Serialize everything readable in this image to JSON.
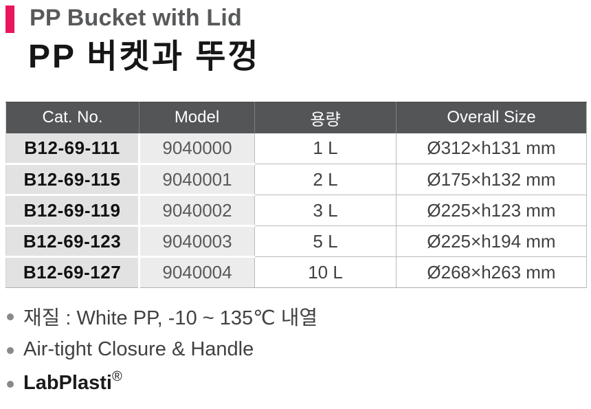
{
  "header": {
    "title_en": "PP Bucket with Lid",
    "title_ko": "PP 버켓과 뚜껑"
  },
  "table": {
    "headers": [
      "Cat. No.",
      "Model",
      "용량",
      "Overall Size"
    ],
    "rows": [
      {
        "cat_no": "B12-69-111",
        "model": "9040000",
        "capacity": "1 L",
        "overall_size": "Ø312×h131 mm"
      },
      {
        "cat_no": "B12-69-115",
        "model": "9040001",
        "capacity": "2 L",
        "overall_size": "Ø175×h132 mm"
      },
      {
        "cat_no": "B12-69-119",
        "model": "9040002",
        "capacity": "3 L",
        "overall_size": "Ø225×h123 mm"
      },
      {
        "cat_no": "B12-69-123",
        "model": "9040003",
        "capacity": "5 L",
        "overall_size": "Ø225×h194 mm"
      },
      {
        "cat_no": "B12-69-127",
        "model": "9040004",
        "capacity": "10 L",
        "overall_size": "Ø268×h263 mm"
      }
    ]
  },
  "notes": [
    {
      "text": "재질 : White PP, -10 ~ 135℃ 내열",
      "bold": false,
      "sup": ""
    },
    {
      "text": "Air-tight Closure & Handle",
      "bold": false,
      "sup": ""
    },
    {
      "text": "LabPlasti",
      "bold": true,
      "sup": "®"
    }
  ],
  "colors": {
    "accent_pink": "#e8175d",
    "header_bg": "#545557",
    "header_text": "#ffffff",
    "cat_col_bg": "#e2e2e2",
    "model_col_bg": "#ececec",
    "body_text": "#414042",
    "title_en_gray": "#58595b"
  }
}
